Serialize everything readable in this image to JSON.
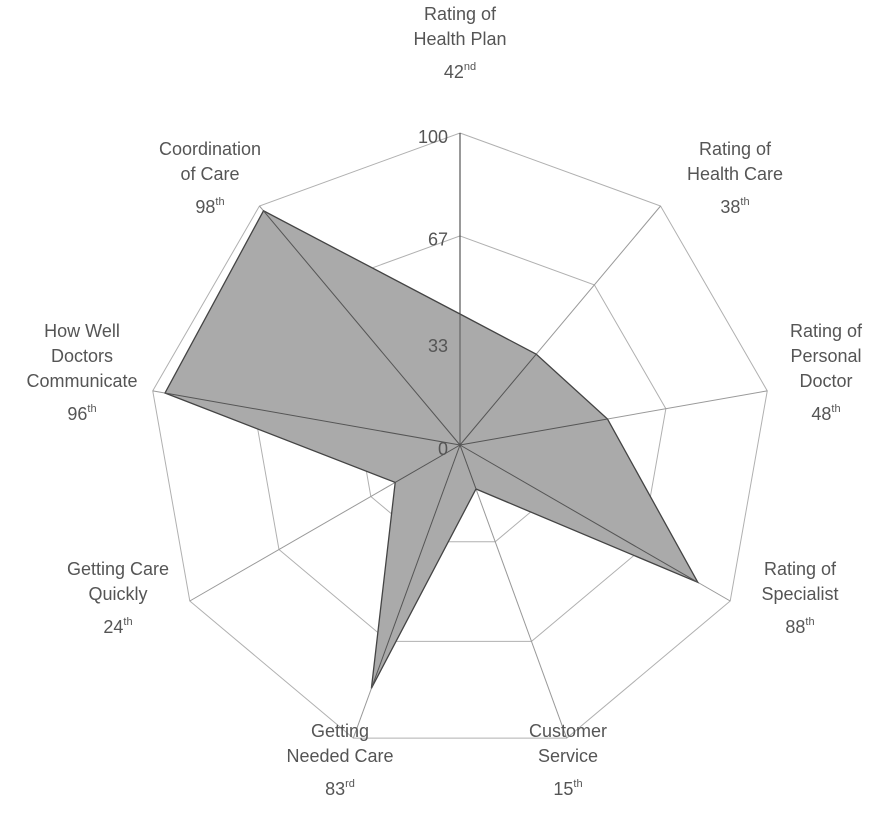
{
  "chart_data": {
    "type": "radar",
    "categories": [
      "Rating of\nHealth Plan",
      "Rating of\nHealth Care",
      "Rating of\nPersonal\nDoctor",
      "Rating of\nSpecialist",
      "Customer\nService",
      "Getting\nNeeded Care",
      "Getting Care\nQuickly",
      "How Well\nDoctors\nCommunicate",
      "Coordination\nof Care"
    ],
    "values": [
      42,
      38,
      48,
      88,
      15,
      83,
      24,
      96,
      98
    ],
    "value_labels": [
      "42nd",
      "38th",
      "48th",
      "88th",
      "15th",
      "83rd",
      "24th",
      "96th",
      "98th"
    ],
    "color": "#aaaaaa",
    "rlim": [
      0,
      100
    ],
    "rticks": [
      0,
      33,
      67,
      100
    ],
    "grid": true
  }
}
